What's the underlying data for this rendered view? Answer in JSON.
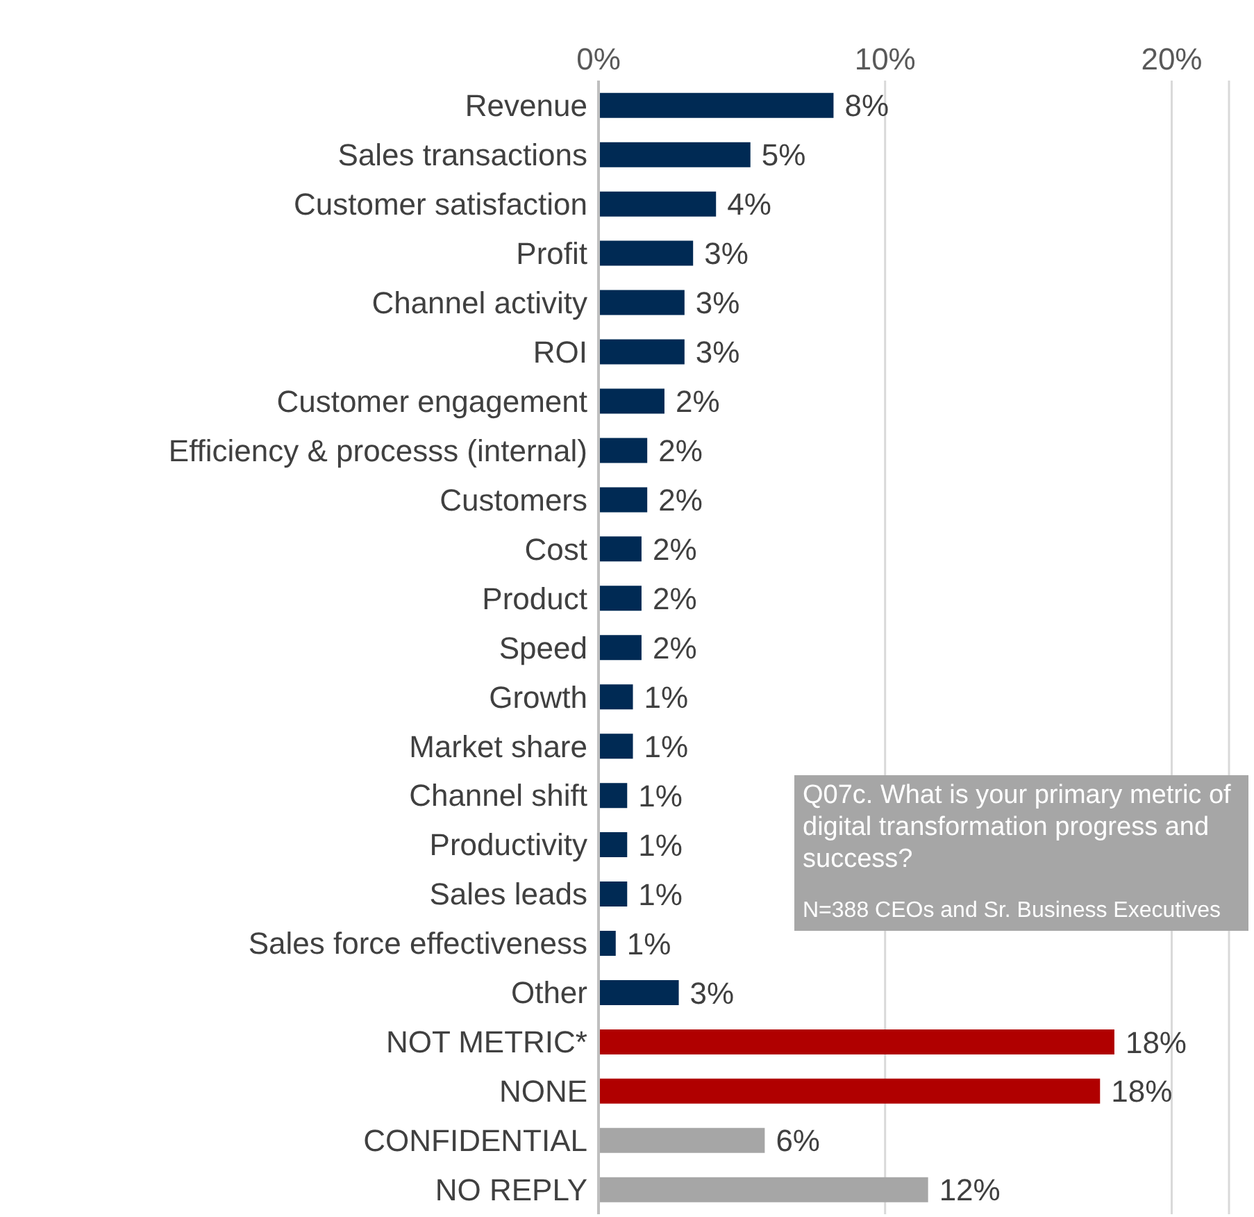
{
  "chart_data": {
    "type": "bar",
    "orientation": "horizontal",
    "categories": [
      "Revenue",
      "Sales transactions",
      "Customer satisfaction",
      "Profit",
      "Channel activity",
      "ROI",
      "Customer engagement",
      "Efficiency & processs (internal)",
      "Customers",
      "Cost",
      "Product",
      "Speed",
      "Growth",
      "Market share",
      "Channel shift",
      "Productivity",
      "Sales leads",
      "Sales force effectiveness",
      "Other",
      "NOT METRIC*",
      "NONE",
      "CONFIDENTIAL",
      "NO REPLY"
    ],
    "values": [
      8.2,
      5.3,
      4.1,
      3.3,
      3.0,
      3.0,
      2.3,
      1.7,
      1.7,
      1.5,
      1.5,
      1.5,
      1.2,
      1.2,
      1.0,
      1.0,
      1.0,
      0.6,
      2.8,
      18.0,
      17.5,
      5.8,
      11.5
    ],
    "value_labels": [
      "8%",
      "5%",
      "4%",
      "3%",
      "3%",
      "3%",
      "2%",
      "2%",
      "2%",
      "2%",
      "2%",
      "2%",
      "1%",
      "1%",
      "1%",
      "1%",
      "1%",
      "1%",
      "3%",
      "18%",
      "18%",
      "6%",
      "12%"
    ],
    "colors": [
      "#002a54",
      "#002a54",
      "#002a54",
      "#002a54",
      "#002a54",
      "#002a54",
      "#002a54",
      "#002a54",
      "#002a54",
      "#002a54",
      "#002a54",
      "#002a54",
      "#002a54",
      "#002a54",
      "#002a54",
      "#002a54",
      "#002a54",
      "#002a54",
      "#002a54",
      "#b00000",
      "#b00000",
      "#a6a6a6",
      "#a6a6a6"
    ],
    "xlim": [
      0,
      22
    ],
    "xticks": [
      {
        "value": 0,
        "label": "0%"
      },
      {
        "value": 10,
        "label": "10%"
      },
      {
        "value": 20,
        "label": "20%"
      }
    ],
    "grid": "x",
    "annotations": [
      "Q07c. What is your primary metric of digital transformation progress and success?",
      "N=388 CEOs and Sr. Business Executives"
    ]
  }
}
